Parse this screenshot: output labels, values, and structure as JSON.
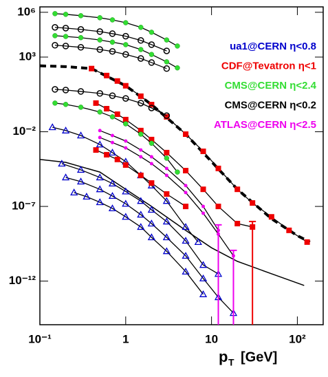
{
  "chart_data": {
    "type": "scatter",
    "log_x": true,
    "log_y": true,
    "x_label": "p",
    "x_label_sub": "T",
    "x_label_unit": "[GeV]",
    "xlim": [
      0.1,
      200
    ],
    "ylim": [
      1.2e-15,
      2300000.0
    ],
    "xticks": [
      {
        "value": 0.1,
        "label": "10⁻¹"
      },
      1,
      10,
      {
        "value": 100,
        "label": "10²"
      }
    ],
    "yticks": [
      {
        "value": 1000000.0,
        "label": "10⁶"
      },
      {
        "value": 1000,
        "label": "10³"
      },
      {
        "value": 0.01,
        "label": "10⁻²"
      },
      {
        "value": 1e-07,
        "label": "10⁻⁷"
      },
      {
        "value": 1e-12,
        "label": "10⁻¹²"
      }
    ],
    "legend": "top right",
    "fit_color": "#000000",
    "series": [
      {
        "name": "ua1@CERN η<0.8",
        "color": "#0000cc",
        "marker": "triangle-open",
        "datasets": [
          {
            "x": [
              0.14,
              0.2,
              0.3,
              0.5,
              0.7,
              1,
              1.5,
              2,
              3,
              5,
              7
            ],
            "values": [
              0.02,
              0.012,
              0.0056,
              0.0014,
              0.0004,
              0.0001,
              1.2e-05,
              2.5e-06,
              2.3e-07,
              4.2e-09,
              4.1e-10
            ]
          },
          {
            "x": [
              0.18,
              0.3,
              0.5,
              0.7,
              1,
              1.5,
              2,
              3,
              5,
              8,
              12
            ],
            "values": [
              7.3e-05,
              2.8e-05,
              8.7e-06,
              3.4e-06,
              1e-06,
              2.3e-07,
              5.9e-08,
              9.7e-09,
              5e-10,
              1.2e-11,
              3e-12
            ]
          },
          {
            "x": [
              0.2,
              0.3,
              0.5,
              0.7,
              1,
              1.5,
              2,
              3,
              5,
              8,
              12,
              18
            ],
            "values": [
              8.7e-06,
              4.6e-06,
              1.4e-06,
              5e-07,
              1.5e-07,
              2.8e-08,
              7.1e-09,
              8.5e-10,
              4.9e-11,
              1.5e-12,
              8.3e-14,
              7.2e-15
            ]
          },
          {
            "x": [
              0.25,
              0.35,
              0.5,
              0.7,
              1,
              1.5,
              2,
              3,
              5,
              8
            ],
            "values": [
              8.5e-07,
              4.5e-07,
              1.9e-07,
              7.4e-08,
              2e-08,
              4.2e-09,
              8.5e-10,
              1e-10,
              4.3e-12,
              1.3e-13
            ]
          }
        ]
      },
      {
        "name": "CDF@Tevatron η<1",
        "color": "#ee0000",
        "marker": "square",
        "datasets": [
          {
            "x": [
              0.4,
              0.6,
              0.8,
              1,
              1.5,
              2,
              3,
              5,
              8,
              12,
              20,
              30,
              50,
              80,
              130
            ],
            "values": [
              170,
              58,
              25,
              12,
              2.4,
              0.66,
              0.1,
              0.0069,
              0.00049,
              3.5e-05,
              1.4e-06,
              1.7e-07,
              2e-08,
              2.5e-09,
              4.1e-10
            ]
          },
          {
            "x": [
              0.45,
              0.6,
              0.8,
              1,
              1.5,
              2,
              3,
              5,
              8,
              12,
              20,
              30
            ],
            "values": [
              0.83,
              0.35,
              0.15,
              0.065,
              0.012,
              0.003,
              0.0004,
              2.5e-05,
              1.4e-06,
              1e-07,
              7.1e-09,
              4.2e-09
            ],
            "yerr": [
              null,
              null,
              null,
              null,
              null,
              null,
              null,
              null,
              null,
              null,
              null,
              4.2e-09
            ]
          },
          {
            "x": [
              0.45,
              0.6,
              0.8,
              1,
              1.5,
              2,
              3,
              5
            ],
            "values": [
              0.0006,
              0.00029,
              0.00014,
              5.9e-05,
              1.2e-05,
              3.7e-06,
              6.8e-07,
              1e-07
            ]
          }
        ]
      },
      {
        "name": "CMS@CERN η<2.4",
        "color": "#33dd33",
        "marker": "circle-filled",
        "datasets": [
          {
            "x": [
              0.15,
              0.2,
              0.3,
              0.5,
              0.7,
              1,
              1.5,
              2,
              3,
              4
            ],
            "values": [
              810000.0,
              730000.0,
              590000.0,
              430000.0,
              310000.0,
              200000.0,
              98000.0,
              46000.0,
              14000.0,
              5500.0
            ]
          },
          {
            "x": [
              0.15,
              0.2,
              0.3,
              0.5,
              0.7,
              1,
              1.5,
              2,
              3,
              4
            ],
            "values": [
              27000.0,
              24000.0,
              20000.0,
              14000.0,
              10000.0,
              6800.0,
              3200.0,
              1500.0,
              480,
              190
            ]
          },
          {
            "x": [
              0.15,
              0.2,
              0.3,
              0.5,
              0.7,
              1,
              1.5,
              2,
              3,
              4
            ],
            "values": [
              0.83,
              0.68,
              0.44,
              0.21,
              0.1,
              0.034,
              0.0069,
              0.0017,
              0.00017,
              2e-05
            ]
          }
        ]
      },
      {
        "name": "CMS@CERN η<0.2",
        "color": "#000000",
        "marker": "circle-open",
        "datasets": [
          {
            "x": [
              0.15,
              0.2,
              0.3,
              0.5,
              0.7,
              1,
              1.5,
              2,
              3
            ],
            "values": [
              98000.0,
              87000.0,
              71000.0,
              51000.0,
              37000.0,
              25000.0,
              13000.0,
              6800.0,
              2600.0
            ]
          },
          {
            "x": [
              0.15,
              0.2,
              0.3,
              0.5,
              0.7,
              1,
              1.5,
              2,
              3
            ],
            "values": [
              6200.0,
              5500.0,
              4500.0,
              3200.0,
              2400.0,
              1500.0,
              810,
              430,
              170
            ]
          },
          {
            "x": [
              0.15,
              0.2,
              0.3,
              0.5,
              0.7,
              1,
              1.5,
              2,
              3
            ],
            "values": [
              6.9,
              6.2,
              5.0,
              3.7,
              2.6,
              1.7,
              0.83,
              0.39,
              0.12
            ]
          }
        ]
      },
      {
        "name": "ATLAS@CERN η<2.5",
        "color": "#ee00ee",
        "marker": "dot",
        "datasets": [
          {
            "x": [
              0.5,
              0.7,
              1,
              1.5,
              2,
              3,
              5,
              8,
              12
            ],
            "values": [
              0.012,
              0.0056,
              0.0024,
              0.0006,
              0.00021,
              3.5e-05,
              2.5e-06,
              1e-07,
              2.5e-09
            ],
            "yerr": [
              null,
              null,
              null,
              null,
              null,
              null,
              null,
              null,
              2.5e-09
            ]
          },
          {
            "x": [
              0.5,
              0.7,
              1,
              1.5,
              2,
              3,
              5,
              8,
              12,
              18
            ],
            "values": [
              0.0041,
              0.0019,
              0.00083,
              0.00021,
              7.3e-05,
              1.2e-05,
              8.5e-07,
              3.5e-08,
              1.4e-09,
              4.9e-11
            ],
            "yerr": [
              null,
              null,
              null,
              null,
              null,
              null,
              null,
              null,
              null,
              4.9e-11
            ]
          }
        ]
      }
    ],
    "fits": [
      {
        "x": [
          0.1,
          0.2,
          0.4,
          1,
          2,
          5,
          10,
          20,
          50,
          100,
          140
        ],
        "values": [
          260,
          230,
          170,
          12,
          0.66,
          0.0069,
          0.0001,
          1.4e-06,
          1.5e-08,
          1.1e-09,
          4.1e-10
        ],
        "dashed": true
      },
      {
        "x": [
          0.1,
          0.2,
          0.5,
          1,
          2,
          5,
          10,
          20,
          50,
          120
        ],
        "values": [
          0.00014,
          8.9e-05,
          2e-05,
          1.4e-06,
          1e-07,
          2.5e-09,
          1.7e-10,
          2.1e-11,
          3.1e-12,
          5.1e-13
        ],
        "dashed": false
      }
    ]
  }
}
